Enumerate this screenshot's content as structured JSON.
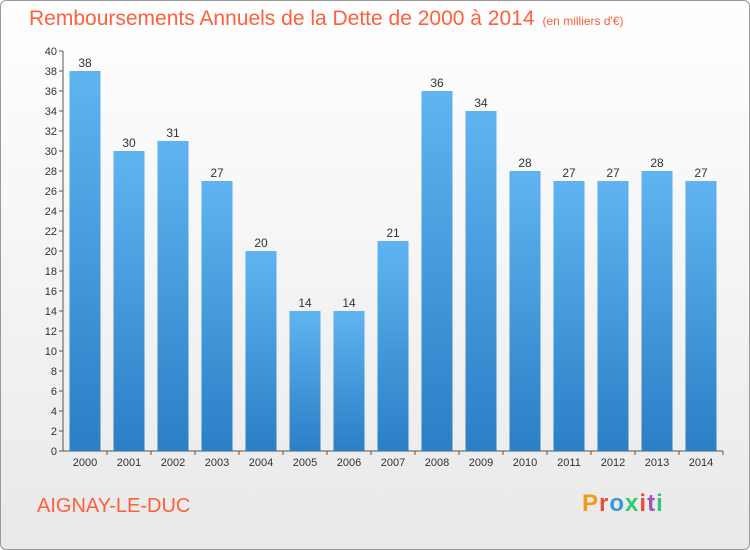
{
  "chart_data": {
    "type": "bar",
    "title": "Remboursements Annuels de la Dette de 2000 à 2014",
    "subtitle": "(en milliers d'€)",
    "categories": [
      "2000",
      "2001",
      "2002",
      "2003",
      "2004",
      "2005",
      "2006",
      "2007",
      "2008",
      "2009",
      "2010",
      "2011",
      "2012",
      "2013",
      "2014"
    ],
    "values": [
      38,
      30,
      31,
      27,
      20,
      14,
      14,
      21,
      36,
      34,
      28,
      27,
      27,
      28,
      27
    ],
    "ylim": [
      0,
      40
    ],
    "ytick_step": 2,
    "grid": false,
    "bar_color": "#3a97e0"
  },
  "footer": {
    "city": "AIGNAY-LE-DUC",
    "logo_letters": [
      "P",
      "r",
      "o",
      "x",
      "i",
      "t",
      "i"
    ],
    "logo_colors": [
      "#f39c12",
      "#e74c3c",
      "#3498db",
      "#2ecc71",
      "#e74c3c",
      "#9b59b6",
      "#2ecc71"
    ]
  }
}
